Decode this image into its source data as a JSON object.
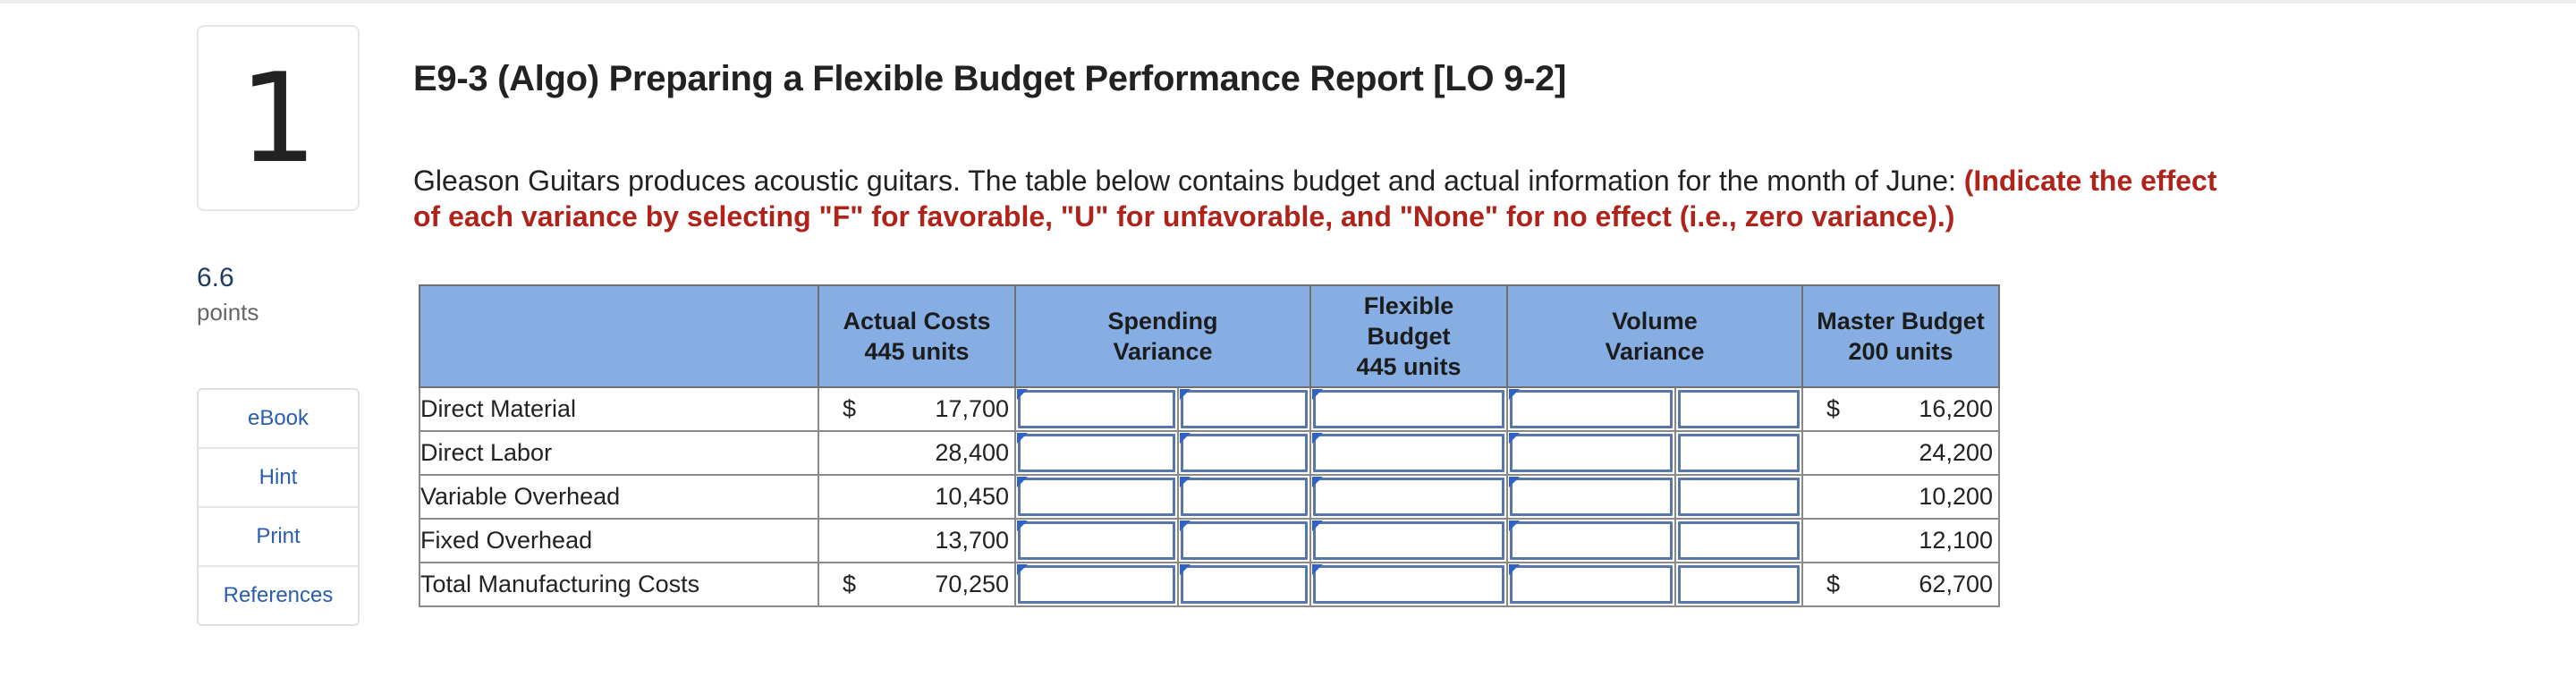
{
  "question": {
    "number": "1",
    "points_value": "6.6",
    "points_label": "points",
    "title": "E9-3 (Algo) Preparing a Flexible Budget Performance Report [LO 9-2]",
    "intro_text": "Gleason Guitars produces acoustic guitars. The table below contains budget and actual information for the month of June: ",
    "instruction_text": "(Indicate the effect of each variance by selecting \"F\" for favorable, \"U\" for unfavorable, and \"None\" for no effect (i.e., zero variance).)"
  },
  "tools": [
    "eBook",
    "Hint",
    "Print",
    "References"
  ],
  "table": {
    "headers": {
      "actual": [
        "Actual Costs",
        "445 units"
      ],
      "spending": [
        "Spending",
        "Variance"
      ],
      "flexible": [
        "Flexible",
        "Budget",
        "445 units"
      ],
      "volume": [
        "Volume",
        "Variance"
      ],
      "master": [
        "Master Budget",
        "200 units"
      ]
    },
    "currency_symbol": "$",
    "rows": [
      {
        "label": "Direct Material",
        "actual": "17,700",
        "master": "16,200"
      },
      {
        "label": "Direct Labor",
        "actual": "28,400",
        "master": "24,200"
      },
      {
        "label": "Variable Overhead",
        "actual": "10,450",
        "master": "10,200"
      },
      {
        "label": "Fixed Overhead",
        "actual": "13,700",
        "master": "12,100"
      },
      {
        "label": "Total Manufacturing Costs",
        "actual": "70,250",
        "master": "62,700"
      }
    ]
  },
  "colors": {
    "header_fill": "#86aee2",
    "instruction_red": "#b0231b",
    "input_border": "#5677a8",
    "link_blue": "#2a5db0"
  }
}
